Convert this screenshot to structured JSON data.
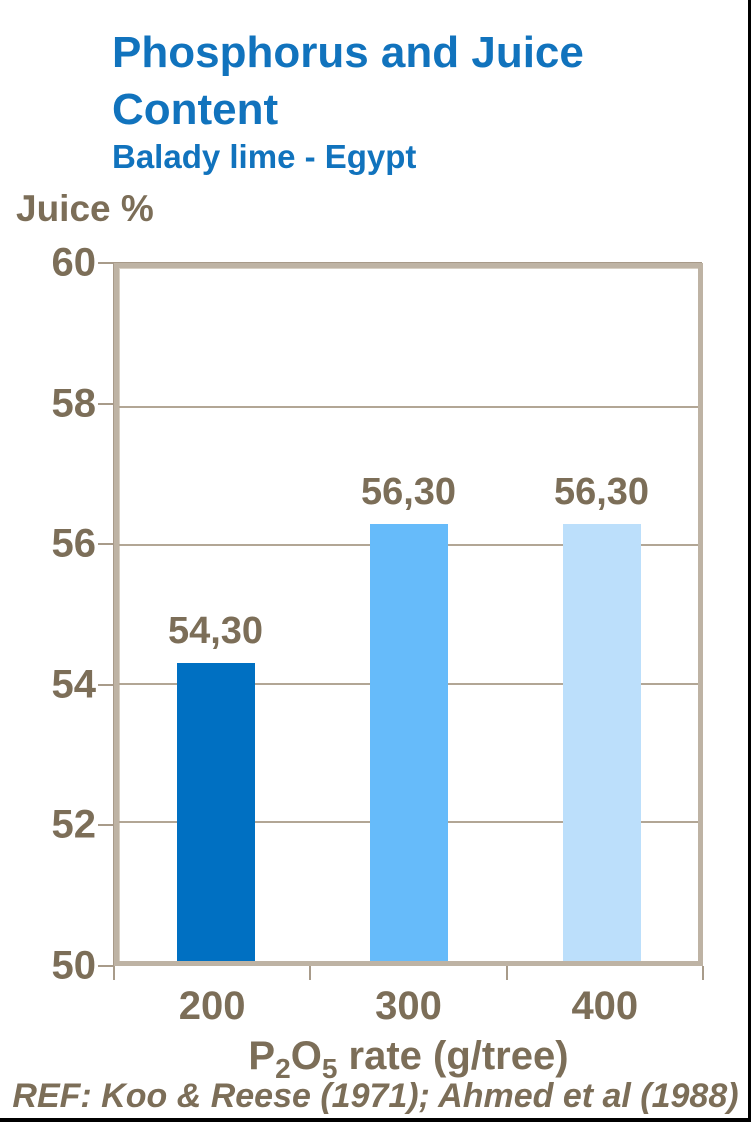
{
  "colors": {
    "title_blue": "#1173BD",
    "axis_text_brown": "#7C6E58",
    "plot_border_tan": "#BEB3A4",
    "gridline_tan": "#B2A695",
    "bar_200": "#0070C2",
    "bar_300": "#66BBFA",
    "bar_400": "#BCDFFB"
  },
  "header": {
    "title": "Phosphorus and Juice Content",
    "subtitle": "Balady lime - Egypt"
  },
  "x_axis_title": {
    "p": "P",
    "sub_2": "2",
    "o": "O",
    "sub_5": "5",
    "rest": " rate (g/tree)"
  },
  "ref_text": "REF: Koo & Reese (1971); Ahmed et al (1988)",
  "chart_data": {
    "type": "bar",
    "title": "Phosphorus and Juice Content",
    "subtitle": "Balady lime - Egypt",
    "ylabel": "Juice %",
    "xlabel": "P2O5 rate (g/tree)",
    "categories": [
      "200",
      "300",
      "400"
    ],
    "values": [
      54.3,
      56.3,
      56.3
    ],
    "value_labels": [
      "54,30",
      "56,30",
      "56,30"
    ],
    "bar_colors": [
      "#0070C2",
      "#66BBFA",
      "#BCDFFB"
    ],
    "ylim": [
      50,
      60
    ],
    "yticks": [
      50,
      52,
      54,
      56,
      58,
      60
    ],
    "grid": true,
    "legend": false,
    "reference": "REF: Koo & Reese (1971); Ahmed et al (1988)"
  }
}
